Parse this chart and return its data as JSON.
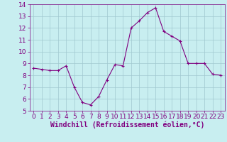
{
  "x": [
    0,
    1,
    2,
    3,
    4,
    5,
    6,
    7,
    8,
    9,
    10,
    11,
    12,
    13,
    14,
    15,
    16,
    17,
    18,
    19,
    20,
    21,
    22,
    23
  ],
  "y": [
    8.6,
    8.5,
    8.4,
    8.4,
    8.8,
    7.0,
    5.7,
    5.5,
    6.2,
    7.6,
    8.9,
    8.8,
    12.0,
    12.6,
    13.3,
    13.7,
    11.7,
    11.3,
    10.9,
    9.0,
    9.0,
    9.0,
    8.1,
    8.0
  ],
  "line_color": "#800080",
  "marker": "+",
  "marker_size": 3,
  "bg_color": "#c8eef0",
  "grid_color": "#a0c8d0",
  "xlabel": "Windchill (Refroidissement éolien,°C)",
  "xlim": [
    -0.5,
    23.5
  ],
  "ylim": [
    5,
    14
  ],
  "yticks": [
    5,
    6,
    7,
    8,
    9,
    10,
    11,
    12,
    13,
    14
  ],
  "xticks": [
    0,
    1,
    2,
    3,
    4,
    5,
    6,
    7,
    8,
    9,
    10,
    11,
    12,
    13,
    14,
    15,
    16,
    17,
    18,
    19,
    20,
    21,
    22,
    23
  ],
  "tick_color": "#800080",
  "label_color": "#800080",
  "font_size": 6.5,
  "xlabel_font_size": 7.0,
  "line_width": 0.8,
  "marker_edge_width": 0.8
}
